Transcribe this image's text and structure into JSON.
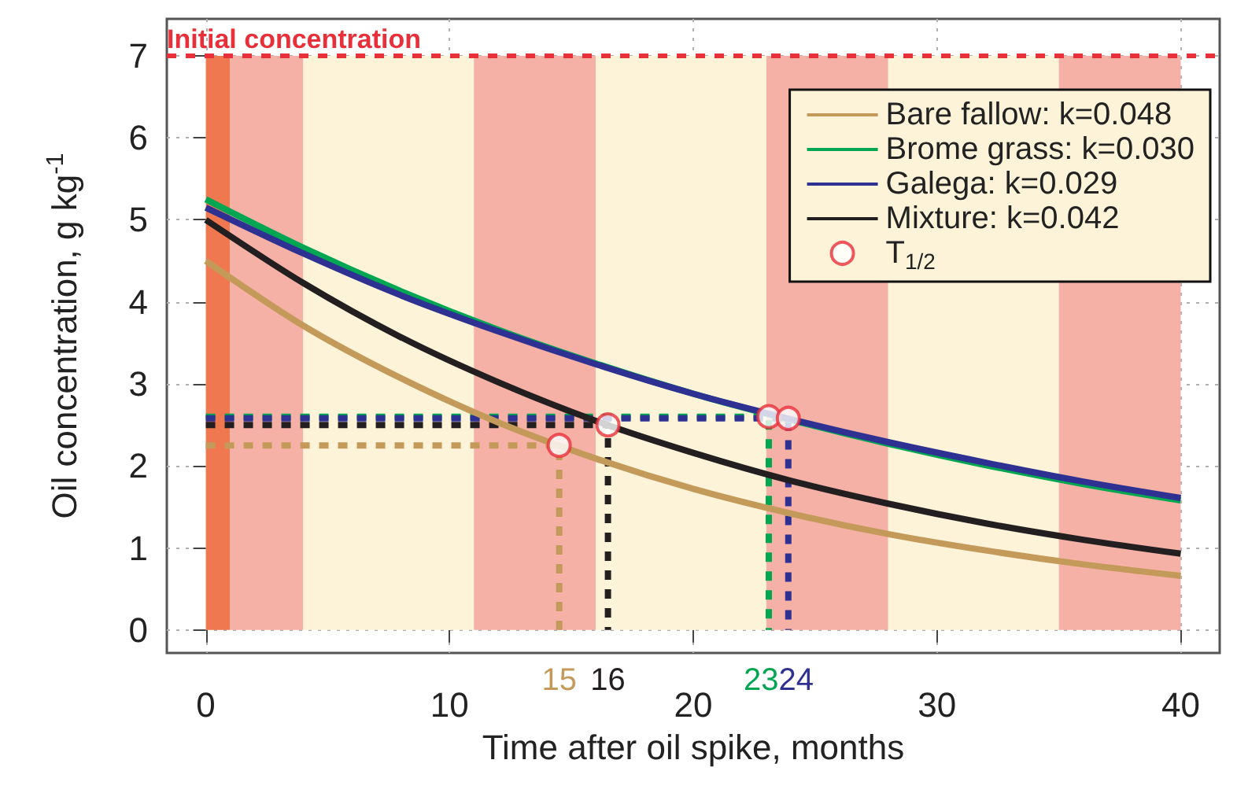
{
  "chart_data": {
    "type": "line",
    "xlabel": "Time after oil spike, months",
    "ylabel": "Oil concentration, g kg$^{-1}$",
    "xlim": [
      -1.6,
      41.6
    ],
    "xticks": [
      0,
      10,
      20,
      30,
      40
    ],
    "ylim": [
      -0.28,
      7.45
    ],
    "yticks": [
      0,
      1,
      2,
      3,
      4,
      5,
      6,
      7
    ],
    "grid": true,
    "legend": "top right",
    "marker": "none",
    "line_style": "solid",
    "series": [
      {
        "name": "Bare fallow: k=0.048",
        "color": "#c49a5a",
        "x": [
          0,
          4,
          8,
          12,
          16,
          20,
          24,
          28,
          32,
          36,
          40
        ],
        "values": [
          4.5,
          3.71,
          3.07,
          2.53,
          2.09,
          1.72,
          1.42,
          1.17,
          0.97,
          0.8,
          0.66
        ]
      },
      {
        "name": "Brome grass: k=0.030",
        "color": "#00a651",
        "x": [
          0,
          4,
          8,
          12,
          16,
          20,
          24,
          28,
          32,
          36,
          40
        ],
        "values": [
          5.25,
          4.66,
          4.13,
          3.66,
          3.25,
          2.88,
          2.56,
          2.27,
          2.01,
          1.78,
          1.58
        ]
      },
      {
        "name": "Galega: k=0.029",
        "color": "#2e3192",
        "x": [
          0,
          4,
          8,
          12,
          16,
          20,
          24,
          28,
          32,
          36,
          40
        ],
        "values": [
          5.15,
          4.59,
          4.08,
          3.64,
          3.24,
          2.88,
          2.57,
          2.29,
          2.04,
          1.81,
          1.61
        ]
      },
      {
        "name": "Mixture: k=0.042",
        "color": "#231f20",
        "x": [
          0,
          4,
          8,
          12,
          16,
          20,
          24,
          28,
          32,
          36,
          40
        ],
        "values": [
          5.0,
          4.23,
          3.57,
          3.02,
          2.55,
          2.16,
          1.82,
          1.54,
          1.3,
          1.1,
          0.93
        ]
      },
      {
        "type": "line",
        "color": "#c49a5a",
        "line_style": "dashed",
        "x": [
          0,
          14.5,
          14.5
        ],
        "values": [
          2.25,
          2.25,
          0
        ]
      },
      {
        "type": "line",
        "color": "#231f20",
        "line_style": "dashed",
        "x": [
          0,
          16.5,
          16.5
        ],
        "values": [
          2.5,
          2.5,
          0
        ]
      },
      {
        "type": "line",
        "color": "#00a651",
        "line_style": "dashed",
        "x": [
          0,
          23.1,
          23.1
        ],
        "values": [
          2.6,
          2.6,
          0
        ]
      },
      {
        "type": "line",
        "color": "#2e3192",
        "line_style": "dashed",
        "x": [
          0,
          23.9,
          23.9
        ],
        "values": [
          2.58,
          2.58,
          0
        ]
      },
      {
        "type": "scatter",
        "name": "T$_{1/2}$",
        "color": "#e8303a",
        "marker": "circle",
        "x": [
          14.5,
          16.5,
          23.1,
          23.9
        ],
        "values": [
          2.25,
          2.5,
          2.6,
          2.58
        ]
      }
    ],
    "annotations": [
      {
        "text": "15",
        "x": 14.5,
        "y": 0
      },
      {
        "text": "16",
        "x": 16.5,
        "y": 0
      },
      {
        "text": "23",
        "x": 23.1,
        "y": 0
      },
      {
        "text": "24",
        "x": 23.9,
        "y": 0
      }
    ],
    "ref_lines": [
      {
        "axis": "y",
        "value": 7,
        "label": "Initial concentration",
        "color": "#e8303a",
        "line_style": "dashed"
      }
    ],
    "bands": [
      {
        "axis": "x",
        "from": 0,
        "to": 1,
        "color": "#f07850"
      },
      {
        "axis": "x",
        "from": 1,
        "to": 4,
        "color": "#f6b1a6"
      },
      {
        "axis": "x",
        "from": 4,
        "to": 11,
        "color": "#fdf3d8"
      },
      {
        "axis": "x",
        "from": 11,
        "to": 16,
        "color": "#f6b1a6"
      },
      {
        "axis": "x",
        "from": 16,
        "to": 23,
        "color": "#fdf3d8"
      },
      {
        "axis": "x",
        "from": 23,
        "to": 28,
        "color": "#f6b1a6"
      },
      {
        "axis": "x",
        "from": 28,
        "to": 35,
        "color": "#fdf3d8"
      },
      {
        "axis": "x",
        "from": 35,
        "to": 40,
        "color": "#f6b1a6"
      }
    ]
  }
}
